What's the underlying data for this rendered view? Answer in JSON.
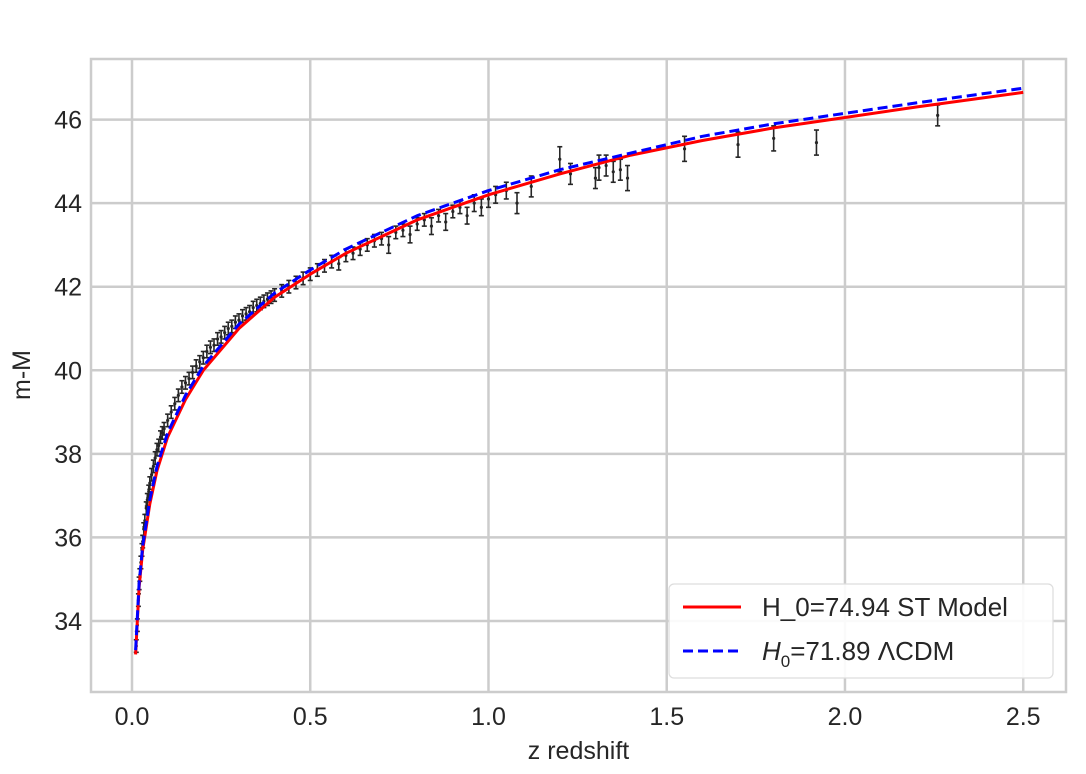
{
  "chart_data": {
    "type": "scatter",
    "xlabel": "z redshift",
    "ylabel": "m-M",
    "xlim": [
      -0.115,
      2.62
    ],
    "ylim": [
      32.3,
      47.45
    ],
    "x_ticks": [
      "0.0",
      "0.5",
      "1.0",
      "1.5",
      "2.0",
      "2.5"
    ],
    "x_tick_values": [
      0,
      0.5,
      1.0,
      1.5,
      2.0,
      2.5
    ],
    "y_ticks": [
      "34",
      "36",
      "38",
      "40",
      "42",
      "44",
      "46"
    ],
    "y_tick_values": [
      34,
      36,
      38,
      40,
      42,
      44,
      46
    ],
    "grid": true,
    "legend_position": "lower-right",
    "series": [
      {
        "name": "H_0=74.94 ST Model",
        "kind": "line",
        "color": "#ff0000",
        "style": "solid",
        "x": [
          0.01,
          0.02,
          0.03,
          0.05,
          0.07,
          0.1,
          0.15,
          0.2,
          0.3,
          0.4,
          0.5,
          0.6,
          0.7,
          0.8,
          0.9,
          1.0,
          1.2,
          1.4,
          1.6,
          1.8,
          2.0,
          2.2,
          2.5
        ],
        "y": [
          33.2,
          34.8,
          35.7,
          36.8,
          37.6,
          38.4,
          39.3,
          40.0,
          41.0,
          41.75,
          42.3,
          42.8,
          43.2,
          43.6,
          43.9,
          44.2,
          44.7,
          45.15,
          45.5,
          45.8,
          46.05,
          46.3,
          46.65
        ]
      },
      {
        "name": "H_0=71.89 ΛCDM",
        "name_parts": {
          "h": "H",
          "sub": "0",
          "rest": "=71.89 ΛCDM"
        },
        "kind": "line",
        "color": "#0000ff",
        "style": "dashed",
        "x": [
          0.01,
          0.02,
          0.03,
          0.05,
          0.07,
          0.1,
          0.15,
          0.2,
          0.3,
          0.4,
          0.5,
          0.6,
          0.7,
          0.8,
          0.9,
          1.0,
          1.2,
          1.4,
          1.6,
          1.8,
          2.0,
          2.2,
          2.5
        ],
        "y": [
          33.3,
          34.9,
          35.8,
          36.9,
          37.7,
          38.5,
          39.4,
          40.1,
          41.1,
          41.85,
          42.4,
          42.9,
          43.3,
          43.7,
          44.0,
          44.3,
          44.8,
          45.2,
          45.6,
          45.9,
          46.15,
          46.4,
          46.75
        ]
      },
      {
        "name": "",
        "kind": "errorbar",
        "color": "#262626",
        "x": [
          0.012,
          0.015,
          0.018,
          0.02,
          0.022,
          0.025,
          0.028,
          0.03,
          0.033,
          0.036,
          0.04,
          0.043,
          0.047,
          0.05,
          0.055,
          0.06,
          0.065,
          0.07,
          0.075,
          0.08,
          0.085,
          0.09,
          0.1,
          0.11,
          0.12,
          0.13,
          0.14,
          0.15,
          0.16,
          0.17,
          0.18,
          0.19,
          0.2,
          0.21,
          0.22,
          0.23,
          0.24,
          0.25,
          0.26,
          0.27,
          0.28,
          0.29,
          0.3,
          0.31,
          0.32,
          0.33,
          0.34,
          0.35,
          0.36,
          0.37,
          0.38,
          0.39,
          0.4,
          0.42,
          0.44,
          0.46,
          0.48,
          0.5,
          0.52,
          0.54,
          0.56,
          0.58,
          0.6,
          0.62,
          0.64,
          0.66,
          0.68,
          0.7,
          0.72,
          0.74,
          0.76,
          0.78,
          0.8,
          0.82,
          0.84,
          0.86,
          0.88,
          0.9,
          0.92,
          0.94,
          0.96,
          0.98,
          1.0,
          1.02,
          1.05,
          1.08,
          1.12,
          1.2,
          1.23,
          1.3,
          1.31,
          1.33,
          1.35,
          1.37,
          1.39,
          1.55,
          1.7,
          1.8,
          1.92,
          2.26
        ],
        "y": [
          33.4,
          33.9,
          34.5,
          34.9,
          35.1,
          35.4,
          35.7,
          35.9,
          36.2,
          36.4,
          36.7,
          36.9,
          37.1,
          37.3,
          37.5,
          37.7,
          37.9,
          38.1,
          38.2,
          38.4,
          38.5,
          38.6,
          38.8,
          39.0,
          39.2,
          39.4,
          39.6,
          39.7,
          39.8,
          39.95,
          40.1,
          40.2,
          40.3,
          40.45,
          40.55,
          40.6,
          40.75,
          40.8,
          40.9,
          41.0,
          41.05,
          41.15,
          41.2,
          41.3,
          41.35,
          41.4,
          41.5,
          41.55,
          41.6,
          41.65,
          41.7,
          41.75,
          41.8,
          41.9,
          42.0,
          42.1,
          42.2,
          42.3,
          42.4,
          42.5,
          42.6,
          42.55,
          42.75,
          42.8,
          42.9,
          43.0,
          43.1,
          43.15,
          43.0,
          43.3,
          43.35,
          43.25,
          43.5,
          43.6,
          43.45,
          43.7,
          43.55,
          43.8,
          43.9,
          43.7,
          44.0,
          43.9,
          44.1,
          44.2,
          44.3,
          44.0,
          44.4,
          45.05,
          44.7,
          44.6,
          44.85,
          44.9,
          44.75,
          44.8,
          44.6,
          45.3,
          45.4,
          45.55,
          45.45,
          46.1
        ],
        "err": [
          0.15,
          0.15,
          0.15,
          0.15,
          0.15,
          0.15,
          0.15,
          0.15,
          0.15,
          0.15,
          0.15,
          0.15,
          0.15,
          0.15,
          0.15,
          0.15,
          0.15,
          0.15,
          0.15,
          0.15,
          0.15,
          0.15,
          0.15,
          0.15,
          0.15,
          0.15,
          0.15,
          0.15,
          0.15,
          0.15,
          0.15,
          0.15,
          0.15,
          0.15,
          0.15,
          0.15,
          0.15,
          0.15,
          0.15,
          0.15,
          0.15,
          0.15,
          0.15,
          0.15,
          0.15,
          0.15,
          0.15,
          0.15,
          0.15,
          0.15,
          0.15,
          0.15,
          0.15,
          0.15,
          0.15,
          0.15,
          0.15,
          0.15,
          0.15,
          0.15,
          0.15,
          0.15,
          0.15,
          0.15,
          0.15,
          0.15,
          0.15,
          0.15,
          0.2,
          0.15,
          0.15,
          0.2,
          0.15,
          0.15,
          0.2,
          0.15,
          0.2,
          0.15,
          0.15,
          0.2,
          0.2,
          0.2,
          0.2,
          0.2,
          0.2,
          0.25,
          0.25,
          0.3,
          0.25,
          0.25,
          0.3,
          0.25,
          0.25,
          0.25,
          0.3,
          0.3,
          0.3,
          0.3,
          0.3,
          0.25
        ]
      }
    ]
  }
}
